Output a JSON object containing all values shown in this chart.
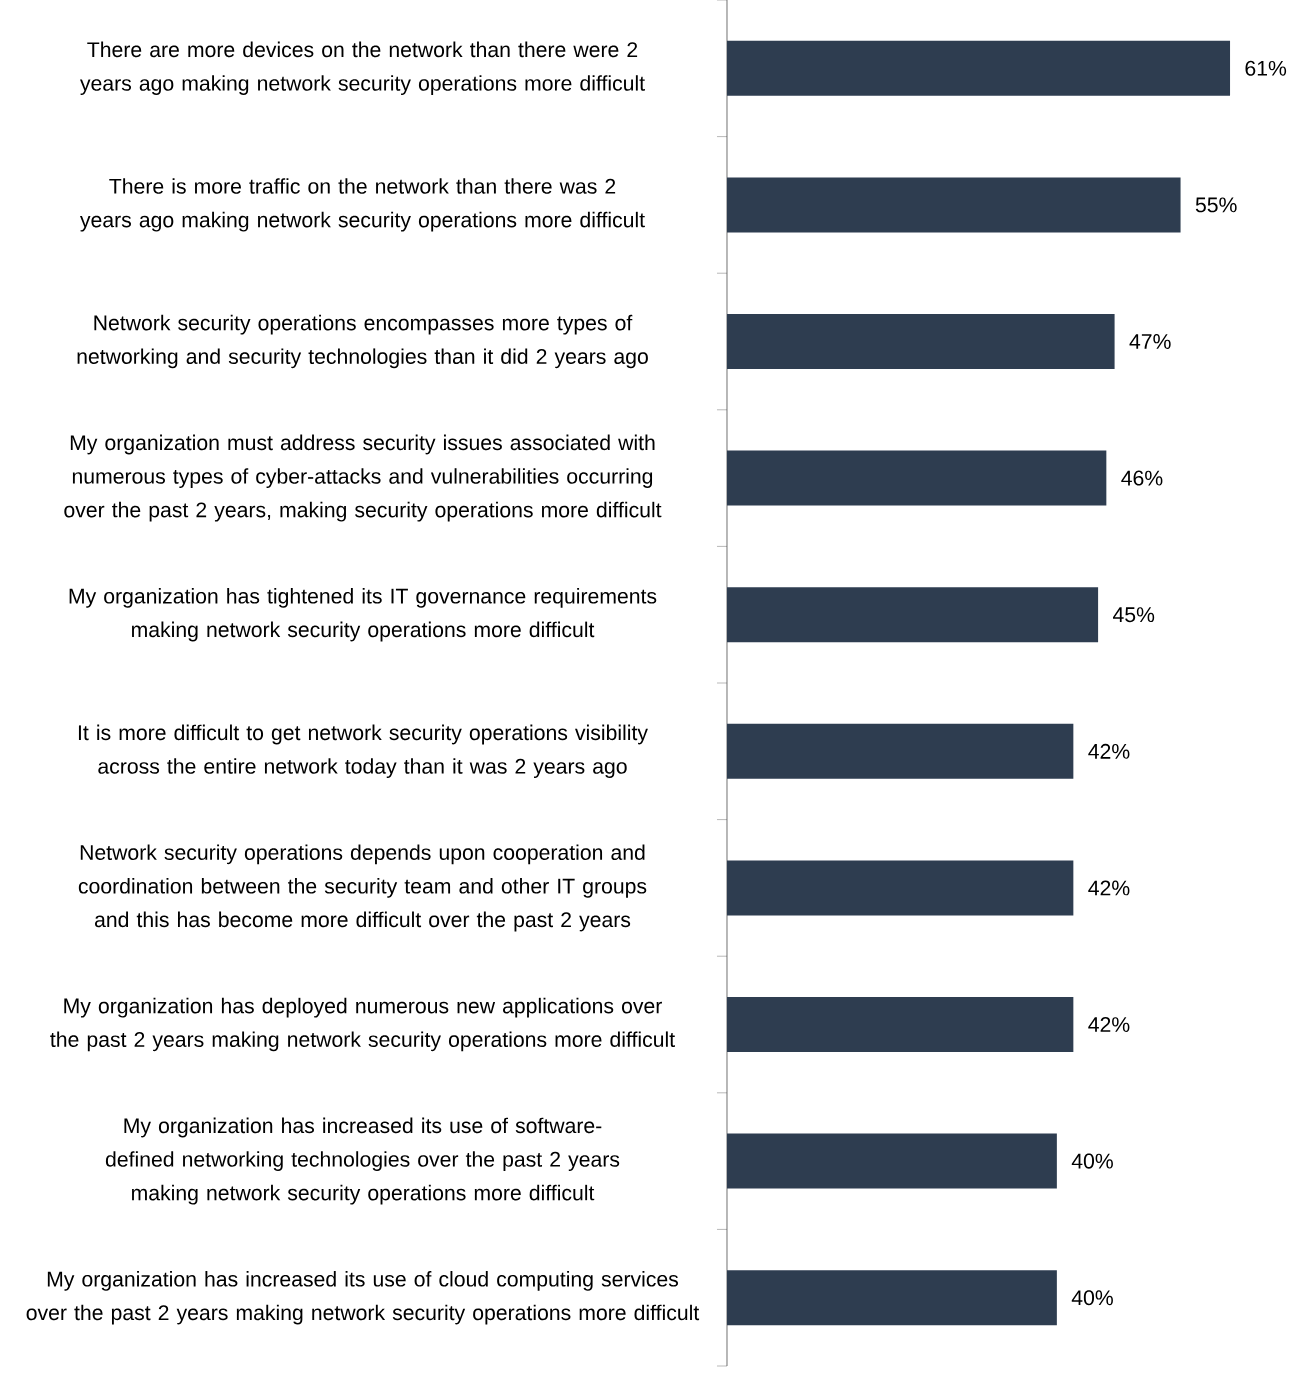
{
  "chart_data": {
    "type": "bar",
    "orientation": "horizontal",
    "color": "#2e3d50",
    "categories": [
      "There are more devices on the network than there were 2 years ago making network security operations more difficult",
      "There is more traffic on the network than there was 2 years ago making network security operations more difficult",
      "Network security operations encompasses more types of networking and security technologies than it did 2 years ago",
      "My organization must address security issues associated with numerous types of cyber-attacks and vulnerabilities occurring over the past 2 years, making security operations more difficult",
      "My organization has tightened its IT governance requirements making network security operations more difficult",
      "It is more difficult to get network security operations visibility across the entire network today than it was 2 years ago",
      "Network security operations depends upon cooperation and coordination between the security team and other IT groups and this has become more difficult over the past 2 years",
      "My organization has deployed numerous new applications over the past 2 years making network security operations more difficult",
      "My organization has increased its use of software-defined networking technologies over the past 2 years making network security operations more difficult",
      "My organization has increased its use of cloud computing services over the past 2 years making network security operations more difficult"
    ],
    "values": [
      61,
      55,
      47,
      46,
      45,
      42,
      42,
      42,
      40,
      40
    ],
    "value_labels": [
      "61%",
      "55%",
      "47%",
      "46%",
      "45%",
      "42%",
      "42%",
      "42%",
      "40%",
      "40%"
    ]
  }
}
